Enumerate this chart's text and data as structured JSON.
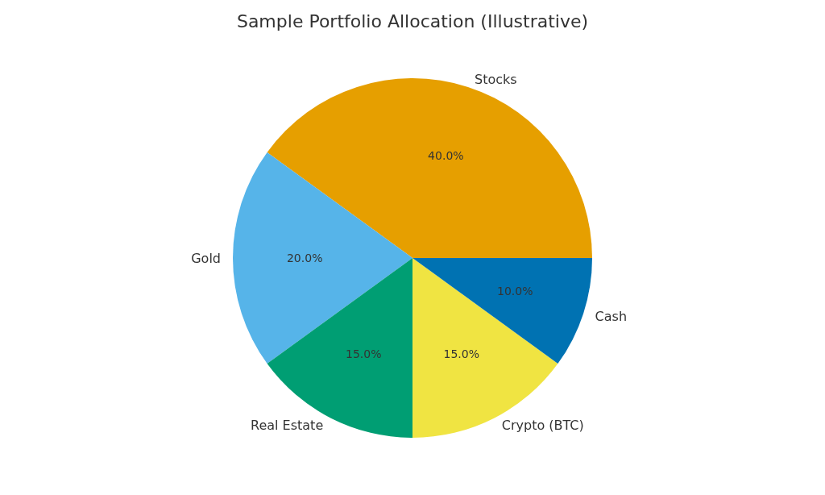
{
  "chart_data": {
    "type": "pie",
    "title": "Sample Portfolio Allocation (Illustrative)",
    "categories": [
      "Stocks",
      "Gold",
      "Real Estate",
      "Crypto (BTC)",
      "Cash"
    ],
    "values": [
      40,
      20,
      15,
      15,
      10
    ],
    "colors": [
      "#e69f00",
      "#56b4e9",
      "#009e73",
      "#f0e442",
      "#0072b2"
    ],
    "value_labels": [
      "40.0%",
      "20.0%",
      "15.0%",
      "15.0%",
      "10.0%"
    ],
    "legend": false
  }
}
